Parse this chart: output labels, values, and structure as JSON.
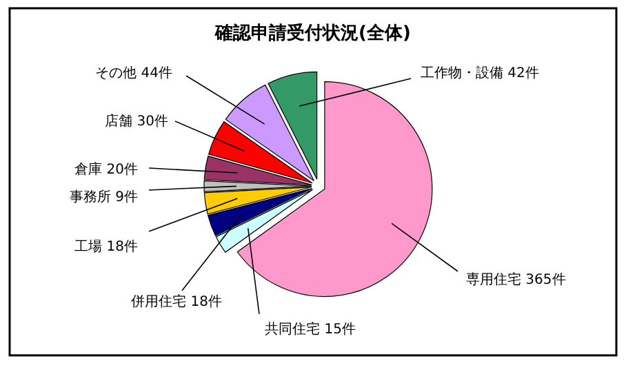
{
  "chart_data": {
    "type": "pie",
    "title": "確認申請受付状況(全体)",
    "categories": [
      "専用住宅",
      "共同住宅",
      "併用住宅",
      "工場",
      "事務所",
      "倉庫",
      "店舗",
      "その他",
      "工作物・設備"
    ],
    "values": [
      365,
      15,
      18,
      18,
      9,
      20,
      30,
      44,
      42
    ],
    "value_labels": [
      "365件",
      "15件",
      "18件",
      "18件",
      "9件",
      "20件",
      "30件",
      "44件",
      "42件"
    ],
    "colors": [
      "#ff99cc",
      "#ccffff",
      "#000080",
      "#ffcc00",
      "#c0c0c0",
      "#993366",
      "#ff0000",
      "#cc99ff",
      "#339966"
    ]
  }
}
